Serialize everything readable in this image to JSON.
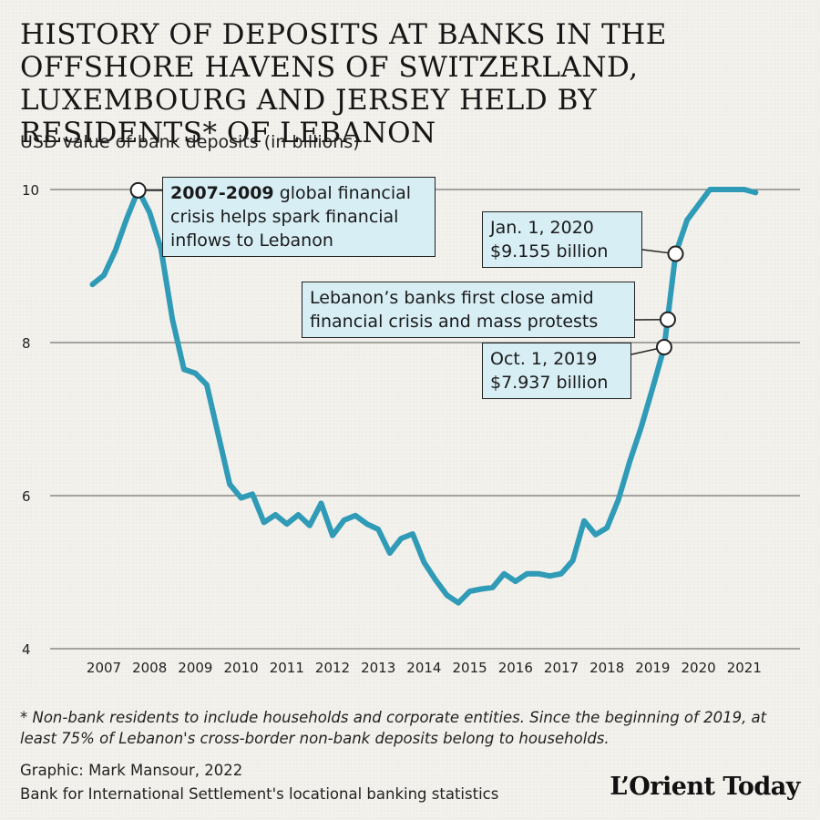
{
  "header": {
    "title": "HISTORY OF DEPOSITS AT BANKS  IN THE OFFSHORE HAVENS OF SWITZERLAND, LUXEMBOURG AND JERSEY HELD BY RESIDENTS* OF LEBANON",
    "subtitle": "USD value of bank deposits (in billions)"
  },
  "annotations": {
    "crisis": {
      "bold": "2007-2009",
      "text": " global financial crisis helps spark financial inflows to Lebanon"
    },
    "jan2020": {
      "line1": "Jan. 1, 2020",
      "line2": "$9.155 billion"
    },
    "banks_close": {
      "line1": "Lebanon’s banks first close amid",
      "line2": "financial crisis and mass protests"
    },
    "oct2019": {
      "line1": "Oct. 1, 2019",
      "line2": "$7.937 billion"
    }
  },
  "footer": {
    "footnote": "* Non-bank residents to include households and corporate entities. Since the beginning of 2019, at least 75% of Lebanon's cross-border non-bank deposits belong to households.",
    "credit": "Graphic: Mark Mansour, 2022",
    "source": "Bank for International Settlement's locational banking statistics",
    "logo": "L’Orient Today"
  },
  "chart_data": {
    "type": "line",
    "ylim": [
      4,
      10
    ],
    "yticks": [
      4,
      6,
      8,
      10
    ],
    "xticks": [
      2007,
      2008,
      2009,
      2010,
      2011,
      2012,
      2013,
      2014,
      2015,
      2016,
      2017,
      2018,
      2019,
      2020,
      2021
    ],
    "grid": true,
    "color": "#2f9bb7",
    "series": [
      {
        "x": [
          2006.75,
          2007.0,
          2007.25,
          2007.5,
          2007.75,
          2008.0,
          2008.25,
          2008.5,
          2008.75,
          2009.0,
          2009.25,
          2009.5,
          2009.75,
          2010.0,
          2010.25,
          2010.5,
          2010.75,
          2011.0,
          2011.25,
          2011.5,
          2011.75,
          2012.0,
          2012.25,
          2012.5,
          2012.75,
          2013.0,
          2013.25,
          2013.5,
          2013.75,
          2014.0,
          2014.25,
          2014.5,
          2014.75,
          2015.0,
          2015.25,
          2015.5,
          2015.75,
          2016.0,
          2016.25,
          2016.5,
          2016.75,
          2017.0,
          2017.25,
          2017.5,
          2017.75,
          2018.0,
          2018.25,
          2018.5,
          2018.75,
          2019.0,
          2019.25,
          2019.5,
          2019.75,
          2020.0,
          2020.25,
          2020.5,
          2020.75,
          2021.0,
          2021.25
        ],
        "y": [
          8.76,
          8.88,
          9.2,
          9.62,
          9.99,
          9.7,
          9.22,
          8.3,
          7.65,
          7.6,
          7.45,
          6.8,
          6.15,
          5.97,
          6.02,
          5.65,
          5.75,
          5.63,
          5.75,
          5.61,
          5.9,
          5.48,
          5.68,
          5.74,
          5.63,
          5.56,
          5.25,
          5.44,
          5.5,
          5.13,
          4.9,
          4.7,
          4.6,
          4.75,
          4.78,
          4.8,
          4.98,
          4.88,
          4.98,
          4.98,
          4.95,
          4.98,
          5.15,
          5.67,
          5.49,
          5.58,
          5.95,
          6.45,
          6.9,
          7.41,
          7.94,
          9.16,
          9.6,
          9.8,
          10.0,
          10.0,
          10.0,
          10.0,
          9.96
        ]
      }
    ],
    "markers": [
      {
        "name": "marker-2007-peak",
        "x": 2007.75,
        "y": 9.99
      },
      {
        "name": "marker-oct-2019",
        "x": 2019.25,
        "y": 7.94
      },
      {
        "name": "marker-banks-close",
        "x": 2019.33,
        "y": 8.3
      },
      {
        "name": "marker-jan-2020",
        "x": 2019.5,
        "y": 9.16
      }
    ]
  }
}
